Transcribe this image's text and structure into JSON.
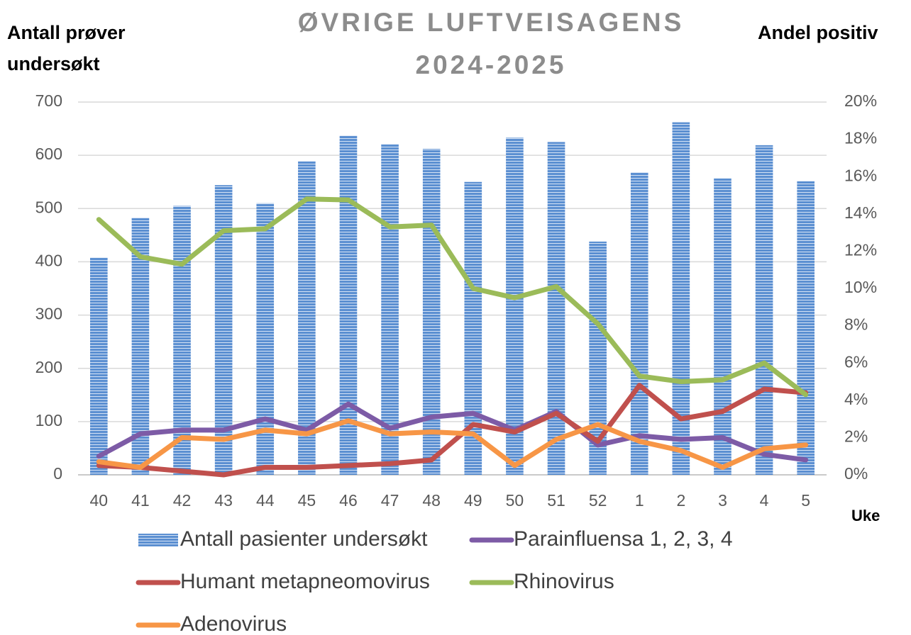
{
  "chart_data": {
    "type": "bar",
    "title": [
      "ØVRIGE LUFTVEISAGENS",
      "2024-2025"
    ],
    "ylabel": [
      "Antall prøver",
      "undersøkt"
    ],
    "y2label": "Andel positiv",
    "xlabel": "Uke",
    "categories": [
      "40",
      "41",
      "42",
      "43",
      "44",
      "45",
      "46",
      "47",
      "48",
      "49",
      "50",
      "51",
      "52",
      "1",
      "2",
      "3",
      "4",
      "5"
    ],
    "ylim": [
      0,
      700
    ],
    "yticks": [
      0,
      100,
      200,
      300,
      400,
      500,
      600,
      700
    ],
    "y2lim": [
      0,
      20
    ],
    "y2ticks": [
      {
        "value": 0,
        "label": "0%"
      },
      {
        "value": 2,
        "label": "2%"
      },
      {
        "value": 4,
        "label": "4%"
      },
      {
        "value": 6,
        "label": "6%"
      },
      {
        "value": 8,
        "label": "8%"
      },
      {
        "value": 10,
        "label": "10%"
      },
      {
        "value": 12,
        "label": "12%"
      },
      {
        "value": 14,
        "label": "14%"
      },
      {
        "value": 16,
        "label": "16%"
      },
      {
        "value": 18,
        "label": "18%"
      },
      {
        "value": 20,
        "label": "20%"
      }
    ],
    "grid": true,
    "legend": "bottom",
    "series": [
      {
        "name": "Antall pasienter undersøkt",
        "type": "bar",
        "color": "#5b8fd1",
        "values": [
          408,
          483,
          505,
          544,
          510,
          589,
          637,
          621,
          612,
          550,
          633,
          625,
          438,
          568,
          662,
          557,
          619,
          552
        ]
      },
      {
        "name": "Parainfluensa 1, 2, 3, 4",
        "type": "line",
        "axis": "y2",
        "color": "#7d5ba6",
        "values": [
          1.0,
          2.2,
          2.4,
          2.4,
          3.0,
          2.4,
          3.8,
          2.5,
          3.1,
          3.3,
          2.4,
          3.4,
          1.6,
          2.1,
          1.9,
          2.0,
          1.1,
          0.8
        ]
      },
      {
        "name": "Humant metapneomovirus",
        "type": "line",
        "axis": "y2",
        "color": "#c0504d",
        "values": [
          0.5,
          0.4,
          0.2,
          0,
          0.4,
          0.4,
          0.5,
          0.6,
          0.8,
          2.7,
          2.3,
          3.3,
          1.8,
          4.8,
          3.0,
          3.4,
          4.6,
          4.4
        ]
      },
      {
        "name": "Rhinovirus",
        "type": "line",
        "axis": "y2",
        "color": "#9bbb59",
        "values": [
          13.7,
          11.7,
          11.3,
          13.1,
          13.2,
          14.8,
          14.75,
          13.3,
          13.4,
          10.0,
          9.5,
          10.1,
          8.1,
          5.3,
          5.0,
          5.1,
          6.0,
          4.3
        ]
      },
      {
        "name": "Adenovirus",
        "type": "line",
        "axis": "y2",
        "color": "#f79646",
        "values": [
          0.7,
          0.4,
          2.0,
          1.9,
          2.4,
          2.2,
          2.9,
          2.2,
          2.3,
          2.2,
          0.5,
          1.9,
          2.7,
          1.8,
          1.3,
          0.4,
          1.4,
          1.6
        ]
      }
    ]
  }
}
